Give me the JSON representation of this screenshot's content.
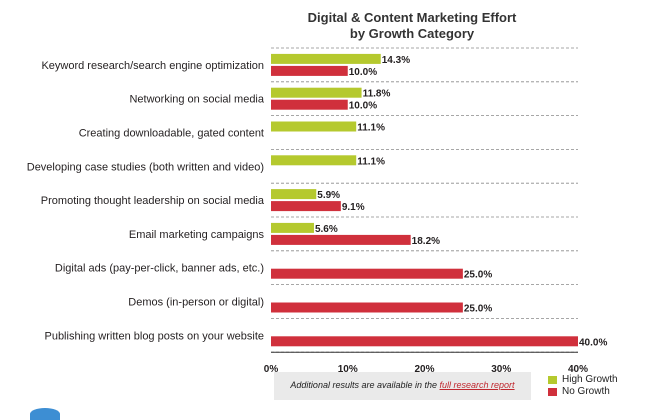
{
  "chart_data": {
    "type": "bar",
    "orientation": "horizontal",
    "title": "Digital & Content Marketing Effort",
    "subtitle": "by Growth Category",
    "categories": [
      "Keyword research/search engine optimization",
      "Networking on social media",
      "Creating downloadable, gated content",
      "Developing case studies (both written and video)",
      "Promoting thought leadership on social media",
      "Email marketing campaigns",
      "Digital ads (pay-per-click, banner ads, etc.)",
      "Demos (in-person or digital)",
      "Publishing written blog posts on your website"
    ],
    "series": [
      {
        "name": "High Growth",
        "color": "#b5c92e",
        "values": [
          14.3,
          11.8,
          11.1,
          11.1,
          5.9,
          5.6,
          null,
          null,
          null
        ],
        "labels": [
          "14.3%",
          "11.8%",
          "11.1%",
          "11.1%",
          "5.9%",
          "5.6%",
          "",
          "",
          ""
        ]
      },
      {
        "name": "No Growth",
        "color": "#d0303c",
        "values": [
          10.0,
          10.0,
          null,
          null,
          9.1,
          18.2,
          25.0,
          25.0,
          40.0
        ],
        "labels": [
          "10.0%",
          "10.0%",
          "",
          "",
          "9.1%",
          "18.2%",
          "25.0%",
          "25.0%",
          "40.0%"
        ]
      }
    ],
    "xlim": [
      0,
      40
    ],
    "xticks": [
      "0%",
      "10%",
      "20%",
      "30%",
      "40%"
    ],
    "grid": "dashed horizontal",
    "legend": "bottom-right"
  },
  "footer": {
    "text": "Additional results are available in the ",
    "link": "full research report"
  }
}
